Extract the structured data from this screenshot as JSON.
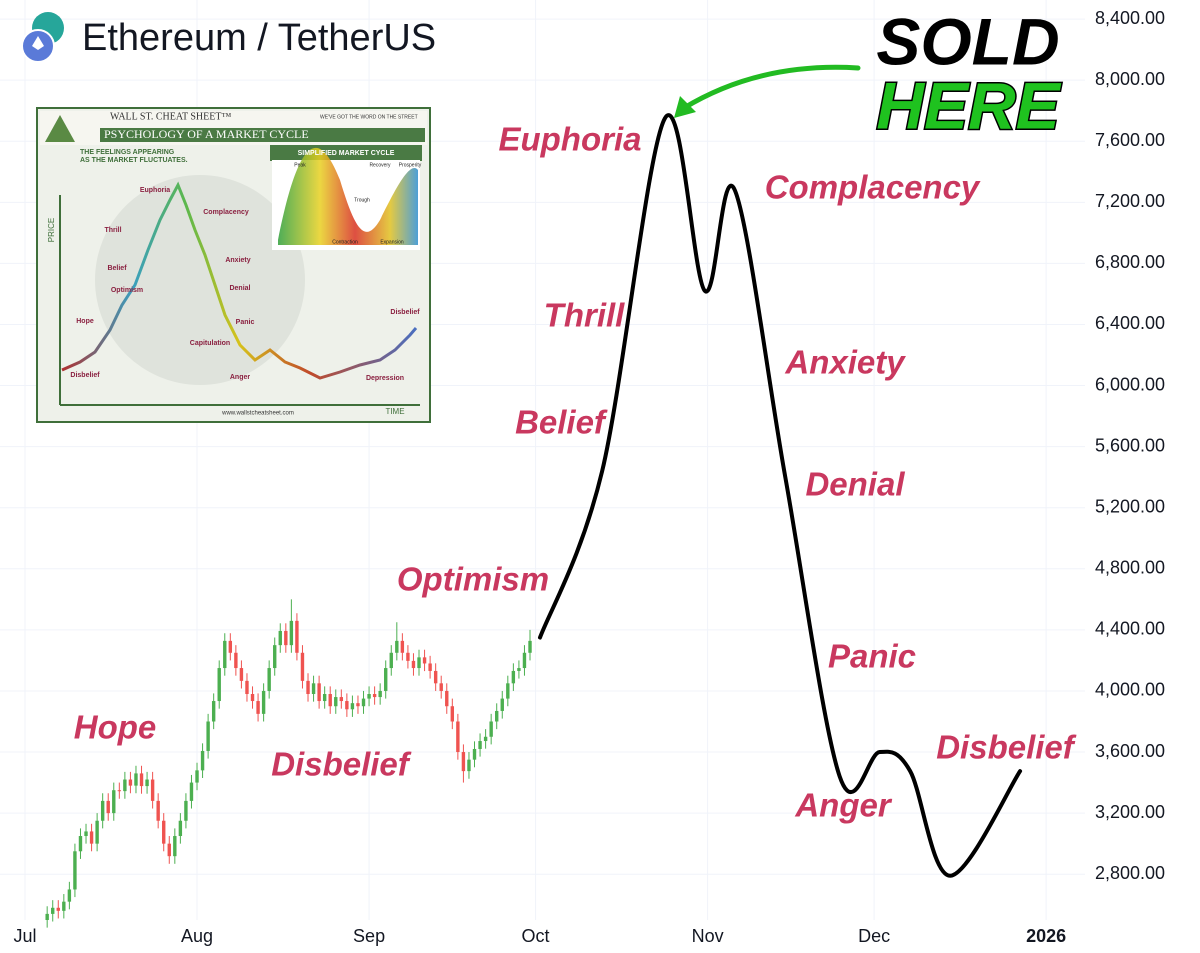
{
  "chart_data": {
    "type": "candlestick",
    "title": "Ethereum / TetherUS",
    "x": [
      4,
      5,
      6,
      7,
      8,
      9,
      10,
      11,
      12,
      13,
      14,
      15,
      16,
      17,
      18,
      19,
      20,
      21,
      22,
      23,
      24,
      25,
      26,
      27,
      28,
      29,
      30,
      31,
      32,
      33,
      34,
      35,
      36,
      37,
      38,
      39,
      40,
      41,
      42,
      43,
      44,
      45,
      46,
      47,
      48,
      49,
      50,
      51,
      52,
      53,
      54,
      55,
      56,
      57,
      58,
      59,
      60,
      61,
      62,
      63,
      64,
      65,
      66,
      67,
      68,
      69,
      70,
      71,
      72,
      73,
      74,
      75,
      76,
      77,
      78,
      79,
      80,
      81,
      82,
      83,
      84,
      85,
      86,
      87,
      88,
      89,
      90,
      91
    ],
    "open": [
      2500,
      2540,
      2580,
      2560,
      2620,
      2700,
      2950,
      3050,
      3080,
      3000,
      3150,
      3280,
      3200,
      3350,
      3344,
      3420,
      3380,
      3460,
      3377,
      3420,
      3280,
      3150,
      3000,
      2918,
      3050,
      3150,
      3280,
      3400,
      3480,
      3607,
      3800,
      3934,
      4150,
      4328,
      4250,
      4150,
      4066,
      3980,
      3934,
      3850,
      4000,
      4150,
      4300,
      4393,
      4300,
      4459,
      4250,
      4066,
      3980,
      4050,
      3934,
      3980,
      3900,
      3960,
      3934,
      3880,
      3920,
      3900,
      3950,
      3980,
      3960,
      4000,
      4150,
      4250,
      4328,
      4250,
      4197,
      4150,
      4220,
      4180,
      4131,
      4050,
      4000,
      3900,
      3800,
      3600,
      3475,
      3550,
      3620,
      3672,
      3700,
      3800,
      3869,
      3950,
      4050,
      4131,
      4150,
      4250
    ],
    "high": [
      2590,
      2630,
      2630,
      2670,
      2750,
      3000,
      3100,
      3130,
      3130,
      3200,
      3330,
      3330,
      3400,
      3400,
      3470,
      3470,
      3510,
      3510,
      3470,
      3470,
      3330,
      3200,
      3050,
      3100,
      3200,
      3330,
      3450,
      3530,
      3657,
      3850,
      3984,
      4200,
      4378,
      4378,
      4300,
      4200,
      4116,
      4030,
      3984,
      4050,
      4200,
      4350,
      4443,
      4443,
      4600,
      4509,
      4300,
      4116,
      4100,
      4100,
      4030,
      4030,
      4010,
      4010,
      3984,
      3970,
      3970,
      4000,
      4030,
      4030,
      4050,
      4200,
      4300,
      4450,
      4378,
      4300,
      4247,
      4270,
      4270,
      4230,
      4181,
      4100,
      4050,
      3950,
      3850,
      3650,
      3600,
      3670,
      3722,
      3750,
      3850,
      3919,
      4000,
      4100,
      4181,
      4200,
      4300,
      4400
    ],
    "low": [
      2450,
      2490,
      2510,
      2510,
      2570,
      2650,
      2900,
      3000,
      2950,
      2950,
      3100,
      3150,
      3150,
      3294,
      3294,
      3330,
      3330,
      3327,
      3327,
      3230,
      3100,
      2950,
      2868,
      2868,
      3000,
      3100,
      3230,
      3350,
      3430,
      3557,
      3750,
      3884,
      4100,
      4200,
      4100,
      4016,
      3930,
      3884,
      3800,
      3800,
      3950,
      4100,
      4250,
      4250,
      4250,
      4200,
      4016,
      3930,
      3930,
      3884,
      3884,
      3850,
      3850,
      3884,
      3830,
      3830,
      3850,
      3850,
      3900,
      3910,
      3910,
      3950,
      4100,
      4200,
      4200,
      4147,
      4100,
      4100,
      4130,
      4081,
      4000,
      3950,
      3850,
      3750,
      3550,
      3400,
      3425,
      3500,
      3570,
      3622,
      3650,
      3750,
      3819,
      3900,
      4000,
      4081,
      4100,
      4200
    ],
    "close": [
      2540,
      2580,
      2560,
      2620,
      2700,
      2950,
      3050,
      3080,
      3000,
      3150,
      3280,
      3200,
      3350,
      3344,
      3420,
      3380,
      3460,
      3377,
      3420,
      3280,
      3150,
      3000,
      2918,
      3050,
      3150,
      3280,
      3400,
      3480,
      3607,
      3800,
      3934,
      4150,
      4328,
      4250,
      4150,
      4066,
      3980,
      3934,
      3850,
      4000,
      4150,
      4300,
      4393,
      4300,
      4459,
      4250,
      4066,
      3980,
      4050,
      3934,
      3980,
      3900,
      3960,
      3934,
      3880,
      3920,
      3900,
      3950,
      3980,
      3960,
      4000,
      4150,
      4250,
      4328,
      4250,
      4197,
      4150,
      4220,
      4180,
      4131,
      4050,
      4000,
      3900,
      3800,
      3600,
      3475,
      3550,
      3620,
      3672,
      3700,
      3800,
      3869,
      3950,
      4050,
      4131,
      4150,
      4250,
      4328
    ],
    "up_color": "#4caf50",
    "down_color": "#ef5350",
    "series": [
      {
        "color": "#000000",
        "x": [
          92.8,
          104,
          115.3,
          122.5,
          127.9,
          137,
          146.8,
          154,
          159.5,
          166.7,
          179.3
        ],
        "values": [
          4350,
          5440,
          7750,
          6620,
          7280,
          5400,
          3440,
          3600,
          3475,
          2790,
          3475
        ]
      }
    ],
    "xlim": [
      -4.5,
      191
    ],
    "ylim": [
      2500,
      8525
    ],
    "xticks": [
      {
        "value": 0,
        "label": "Jul"
      },
      {
        "value": 31,
        "label": "Aug"
      },
      {
        "value": 62,
        "label": "Sep"
      },
      {
        "value": 92,
        "label": "Oct"
      },
      {
        "value": 123,
        "label": "Nov"
      },
      {
        "value": 153,
        "label": "Dec"
      },
      {
        "value": 184,
        "label": "2026"
      }
    ],
    "yticks": [
      {
        "value": 2800,
        "label": "2,800.00"
      },
      {
        "value": 3200,
        "label": "3,200.00"
      },
      {
        "value": 3600,
        "label": "3,600.00"
      },
      {
        "value": 4000,
        "label": "4,000.00"
      },
      {
        "value": 4400,
        "label": "4,400.00"
      },
      {
        "value": 4800,
        "label": "4,800.00"
      },
      {
        "value": 5200,
        "label": "5,200.00"
      },
      {
        "value": 5600,
        "label": "5,600.00"
      },
      {
        "value": 6000,
        "label": "6,000.00"
      },
      {
        "value": 6400,
        "label": "6,400.00"
      },
      {
        "value": 6800,
        "label": "6,800.00"
      },
      {
        "value": 7200,
        "label": "7,200.00"
      },
      {
        "value": 7600,
        "label": "7,600.00"
      },
      {
        "value": 8000,
        "label": "8,000.00"
      },
      {
        "value": 8400,
        "label": "8,400.00"
      }
    ],
    "grid": true,
    "annotations": [
      "Euphoria",
      "Complacency",
      "Thrill",
      "Anxiety",
      "Belief",
      "Denial",
      "Optimism",
      "Panic",
      "Hope",
      "Disbelief",
      "Anger",
      "Disbelief"
    ],
    "callout": [
      "SOLD",
      "HERE"
    ],
    "inset": {
      "brand": "WALL ST. CHEAT SHEET™",
      "tagline": "WE'VE GOT THE WORD ON THE STREET",
      "title": "PSYCHOLOGY OF A MARKET CYCLE",
      "subtitle": [
        "THE FEELINGS APPEARING",
        "AS THE MARKET FLUCTUATES."
      ],
      "mini_title": "SIMPLIFIED MARKET CYCLE",
      "mini_labels": [
        "Peak",
        "Trough",
        "Recovery",
        "Prosperity",
        "Contraction",
        "Expansion"
      ],
      "y_label": "PRICE",
      "x_label": "TIME",
      "stages": [
        "Euphoria",
        "Complacency",
        "Thrill",
        "Anxiety",
        "Belief",
        "Denial",
        "Optimism",
        "Panic",
        "Hope",
        "Capitulation",
        "Disbelief",
        "Anger",
        "Depression",
        "Disbelief"
      ],
      "url": "www.wallstcheatsheet.com"
    }
  }
}
